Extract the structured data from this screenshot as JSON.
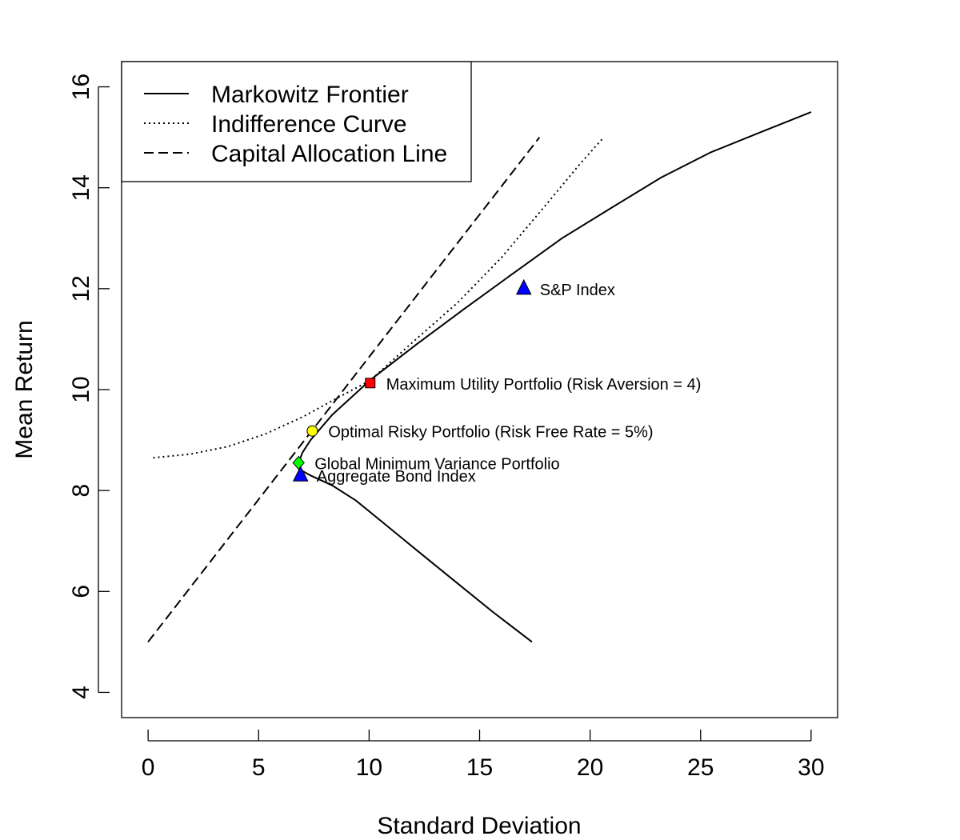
{
  "chart_data": {
    "type": "line",
    "xlabel": "Standard Deviation",
    "ylabel": "Mean Return",
    "xlim": [
      -1.2,
      31.2
    ],
    "ylim": [
      3.5,
      16.5
    ],
    "x_ticks": [
      0,
      5,
      10,
      15,
      20,
      25,
      30
    ],
    "y_ticks": [
      4,
      6,
      8,
      10,
      12,
      14,
      16
    ],
    "x_tick_labels": [
      "0",
      "5",
      "10",
      "15",
      "20",
      "25",
      "30"
    ],
    "y_tick_labels": [
      "4",
      "6",
      "8",
      "10",
      "12",
      "14",
      "16"
    ],
    "grid": false,
    "legend": {
      "position": "top-left",
      "entries": [
        {
          "label": "Markowitz Frontier",
          "style": "solid"
        },
        {
          "label": "Indifference Curve",
          "style": "dotted"
        },
        {
          "label": "Capital Allocation Line",
          "style": "dashed"
        }
      ]
    },
    "series": [
      {
        "name": "Markowitz Frontier",
        "style": "solid",
        "x": [
          17.37,
          15.58,
          13.89,
          12.2,
          10.53,
          9.41,
          8.33,
          7.34,
          6.93,
          6.81,
          6.85,
          6.98,
          7.35,
          8.33,
          10.08,
          12.16,
          14.31,
          16.51,
          18.73,
          20.96,
          23.2,
          25.45,
          27.71,
          30.0
        ],
        "y": [
          5.0,
          5.6,
          6.2,
          6.8,
          7.4,
          7.8,
          8.1,
          8.3,
          8.4,
          8.5,
          8.6,
          8.75,
          9.0,
          9.5,
          10.2,
          10.9,
          11.6,
          12.3,
          13.0,
          13.6,
          14.2,
          14.7,
          15.1,
          15.5
        ]
      },
      {
        "name": "Indifference Curve",
        "style": "dotted",
        "x": [
          0.23,
          1.9,
          3.6,
          5.3,
          7.0,
          8.5,
          10.05,
          12.0,
          14.0,
          16.0,
          18.0,
          19.5,
          20.62
        ],
        "y": [
          8.65,
          8.72,
          8.87,
          9.12,
          9.46,
          9.82,
          10.18,
          10.95,
          11.72,
          12.62,
          13.66,
          14.45,
          15.0
        ]
      },
      {
        "name": "Capital Allocation Line",
        "style": "dashed",
        "x": [
          0.0,
          17.71
        ],
        "y": [
          5.0,
          15.0
        ]
      }
    ],
    "points": [
      {
        "label": "S&P Index",
        "x": 17.0,
        "y": 12.0,
        "marker": "triangle",
        "color": "#0000ff"
      },
      {
        "label": "Maximum Utility Portfolio (Risk Aversion = 4)",
        "x": 10.05,
        "y": 10.13,
        "marker": "square",
        "color": "#ff0000"
      },
      {
        "label": "Optimal Risky Portfolio (Risk Free Rate = 5%)",
        "x": 7.43,
        "y": 9.18,
        "marker": "circle",
        "color": "#ffff00"
      },
      {
        "label": "Global Minimum Variance Portfolio",
        "x": 6.81,
        "y": 8.55,
        "marker": "diamond",
        "color": "#00ff00"
      },
      {
        "label": "Aggregate Bond Index",
        "x": 6.9,
        "y": 8.3,
        "marker": "triangle",
        "color": "#0000ff"
      }
    ]
  }
}
